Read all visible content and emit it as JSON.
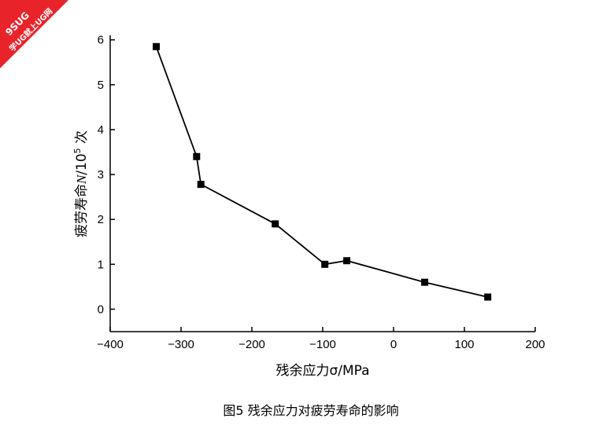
{
  "watermark": {
    "line1": "9SUG",
    "line2": "学UG就上UG网",
    "color": "#e8232a"
  },
  "chart_data": {
    "type": "line",
    "x": [
      -335,
      -278,
      -272,
      -167,
      -97,
      -66,
      44,
      133
    ],
    "series": [
      {
        "values": [
          5.85,
          3.4,
          2.78,
          1.9,
          1.0,
          1.08,
          0.6,
          0.27
        ]
      }
    ],
    "xlim": [
      -400,
      200
    ],
    "ylim": [
      -0.5,
      6.1
    ],
    "xticks": [
      -400,
      -300,
      -200,
      -100,
      0,
      100,
      200
    ],
    "yticks": [
      0,
      1,
      2,
      3,
      4,
      5,
      6
    ],
    "xlabel": "残余应力σ/MPa",
    "ylabel_prefix": "疲劳寿命",
    "ylabel_var": "N",
    "ylabel_mid": "/10",
    "ylabel_exp": "5",
    "ylabel_suffix": " 次",
    "caption": "图5   残余应力对疲劳寿命的影响",
    "grid": false,
    "marker": "square",
    "line_color": "#000000"
  }
}
